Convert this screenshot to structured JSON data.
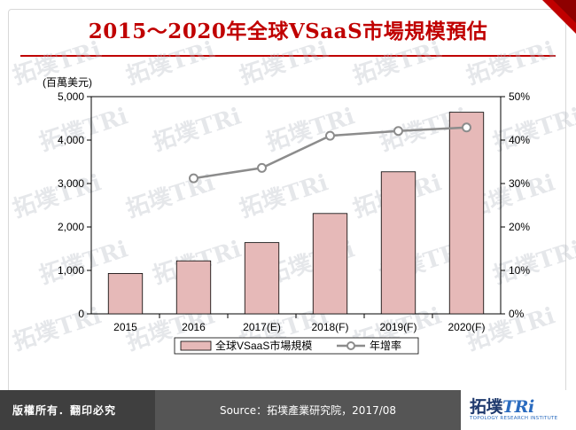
{
  "page": {
    "title": "2015～2020年全球VSaaS市場規模預估",
    "copyright": "版權所有．翻印必究",
    "source": "Source：拓墣產業研究院，2017/08",
    "logo_main_a": "拓墣",
    "logo_main_b": "TRi",
    "logo_sub": "TOPOLOGY RESEARCH INSTITUTE",
    "watermark_text": "拓墣TRi",
    "colors": {
      "title": "#c00000",
      "bar": "#e6b9b8",
      "bar_edge": "#000000",
      "line": "#8c8c8c"
    }
  },
  "chart_data": {
    "type": "bar",
    "categories": [
      "2015",
      "2016",
      "2017(E)",
      "2018(F)",
      "2019(F)",
      "2020(F)"
    ],
    "ylabel": "(百萬美元)",
    "ylim": [
      0,
      5000
    ],
    "yticks": [
      "0",
      "1,000",
      "2,000",
      "3,000",
      "4,000",
      "5,000"
    ],
    "y2lim": [
      0,
      50
    ],
    "y2ticks": [
      "0%",
      "10%",
      "20%",
      "30%",
      "40%",
      "50%"
    ],
    "grid": false,
    "legend_position": "bottom",
    "series": [
      {
        "name": "全球VSaaS市場規模",
        "type": "bar",
        "axis": "left",
        "values": [
          930,
          1220,
          1640,
          2310,
          3270,
          4640
        ]
      },
      {
        "name": "年增率",
        "type": "line",
        "axis": "right",
        "values": [
          null,
          31.2,
          33.6,
          41.0,
          42.1,
          42.9
        ]
      }
    ]
  }
}
